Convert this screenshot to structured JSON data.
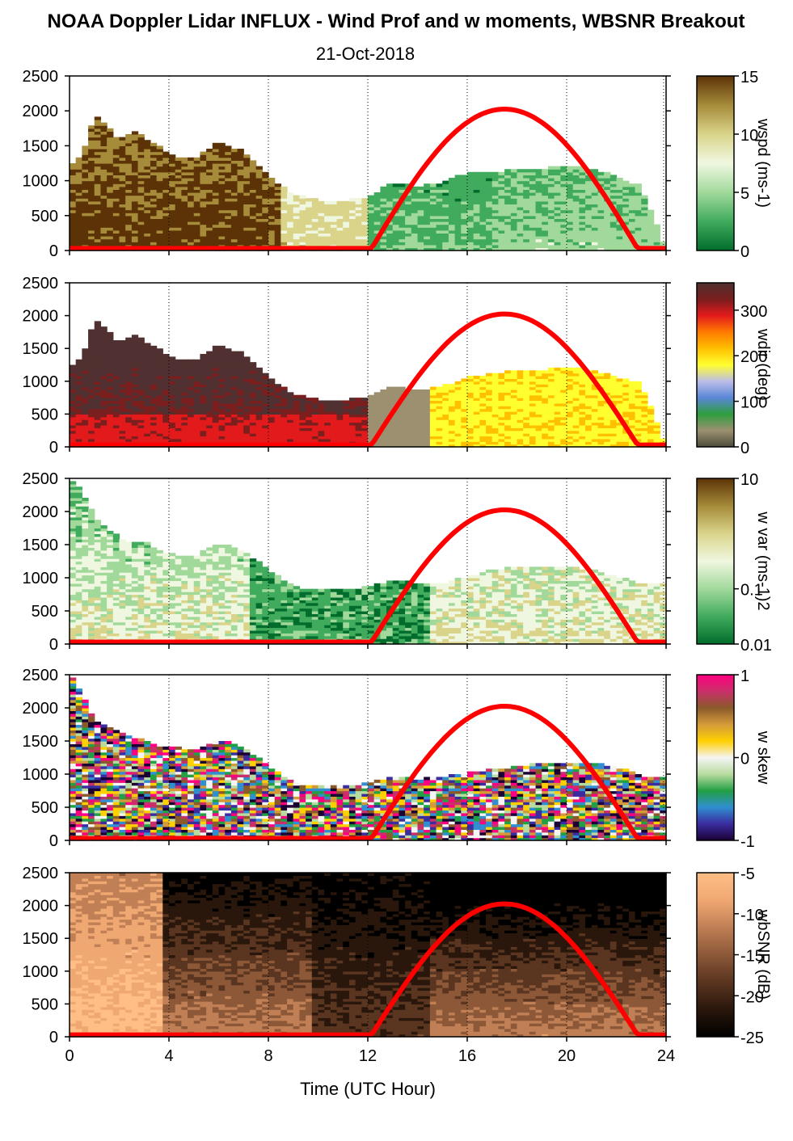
{
  "chart_data": {
    "type": "heatmap",
    "title": "NOAA Doppler Lidar INFLUX - Wind Prof and w moments, WBSNR Breakout",
    "subtitle": "21-Oct-2018",
    "xlabel": "Time (UTC Hour)",
    "xlim": [
      0,
      24
    ],
    "x_ticks": [
      "0",
      "4",
      "8",
      "12",
      "16",
      "20",
      "24"
    ],
    "ylim": [
      0,
      2500
    ],
    "y_ticks": [
      "0",
      "500",
      "1000",
      "1500",
      "2000",
      "2500"
    ],
    "grid": "vertical dotted lines every 4 hours",
    "overlay": {
      "name": "solar elevation curve",
      "color": "#ff0000",
      "x": [
        0,
        12.1,
        13,
        14,
        15,
        16,
        17,
        17.5,
        18,
        19,
        20,
        21,
        22,
        22.9,
        24
      ],
      "y": [
        30,
        30,
        740,
        1310,
        1710,
        1940,
        2020,
        2025,
        2010,
        1860,
        1560,
        1110,
        520,
        30,
        30
      ]
    },
    "panels": [
      {
        "id": "wspd",
        "colorbar_label": "wspd (ms-1)",
        "colorbar_ticks": [
          "0",
          "5",
          "10",
          "15"
        ],
        "colorbar_range": [
          0,
          15
        ],
        "colors": [
          "#006d2c",
          "#41ab5d",
          "#a1d99b",
          "#f0f7e0",
          "#d9d48a",
          "#a68b3a",
          "#5c3306"
        ],
        "echo_top": {
          "x": [
            0,
            0.5,
            1,
            1.5,
            2,
            2.5,
            3,
            3.5,
            4,
            5,
            6,
            7,
            8,
            9,
            10,
            11,
            12,
            13,
            14,
            15,
            16,
            17,
            18,
            19,
            20,
            21,
            22,
            23,
            24
          ],
          "y": [
            1200,
            1350,
            1900,
            1800,
            1550,
            1700,
            1600,
            1500,
            1350,
            1300,
            1550,
            1400,
            1050,
            800,
            700,
            700,
            750,
            950,
            900,
            950,
            1100,
            1100,
            1150,
            1150,
            1200,
            1150,
            1050,
            900,
            0
          ]
        }
      },
      {
        "id": "wdir",
        "colorbar_label": "wdir (deg)",
        "colorbar_ticks": [
          "0",
          "100",
          "200",
          "300"
        ],
        "colorbar_range": [
          0,
          360
        ],
        "colors": [
          "#4b4b3a",
          "#9c9070",
          "#2e9e3e",
          "#5a86d8",
          "#bdbde8",
          "#ffff30",
          "#ffc000",
          "#ff7a00",
          "#e31a1c",
          "#7a1e1e",
          "#503030"
        ],
        "echo_top": {
          "x": [
            0,
            0.5,
            1,
            1.5,
            2,
            2.5,
            3,
            3.5,
            4,
            5,
            6,
            7,
            8,
            9,
            10,
            11,
            12,
            13,
            14,
            15,
            16,
            17,
            18,
            19,
            20,
            21,
            22,
            23,
            24
          ],
          "y": [
            1200,
            1350,
            1900,
            1800,
            1550,
            1700,
            1600,
            1500,
            1350,
            1300,
            1550,
            1400,
            1050,
            800,
            700,
            700,
            750,
            900,
            850,
            900,
            1050,
            1100,
            1150,
            1150,
            1200,
            1150,
            1050,
            950,
            0
          ]
        }
      },
      {
        "id": "wvar",
        "colorbar_label": "w var (ms-1)2",
        "colorbar_ticks": [
          "0.01",
          "0.1",
          "10"
        ],
        "colorbar_range": [
          0.01,
          10
        ],
        "colors": [
          "#006d2c",
          "#41ab5d",
          "#a1d99b",
          "#f0f7e0",
          "#d9d48a",
          "#a68b3a",
          "#5c3306"
        ],
        "echo_top": {
          "x": [
            0,
            0.5,
            1,
            1.5,
            2,
            2.5,
            3,
            3.5,
            4,
            5,
            6,
            7,
            8,
            9,
            10,
            11,
            12,
            13,
            14,
            15,
            16,
            17,
            18,
            19,
            20,
            21,
            22,
            23,
            24
          ],
          "y": [
            2500,
            2300,
            1900,
            1700,
            1600,
            1500,
            1550,
            1400,
            1350,
            1300,
            1500,
            1400,
            1100,
            850,
            800,
            800,
            850,
            950,
            900,
            900,
            1000,
            1100,
            1150,
            1150,
            1150,
            1100,
            1000,
            900,
            900
          ]
        }
      },
      {
        "id": "wskew",
        "colorbar_label": "w skew",
        "colorbar_ticks": [
          "-1",
          "0",
          "1"
        ],
        "colorbar_range": [
          -1,
          1
        ],
        "colors": [
          "#1a0033",
          "#3b2ca0",
          "#2f8fd0",
          "#22a045",
          "#b8dba0",
          "#f5f5f5",
          "#ffd000",
          "#d49a3a",
          "#8a5a2a",
          "#c9306a",
          "#ff0080"
        ],
        "echo_top": {
          "x": [
            0,
            0.5,
            1,
            1.5,
            2,
            2.5,
            3,
            3.5,
            4,
            5,
            6,
            7,
            8,
            9,
            10,
            11,
            12,
            13,
            14,
            15,
            16,
            17,
            18,
            19,
            20,
            21,
            22,
            23,
            24
          ],
          "y": [
            2500,
            2200,
            1800,
            1700,
            1600,
            1550,
            1500,
            1400,
            1400,
            1350,
            1500,
            1400,
            1100,
            850,
            800,
            800,
            850,
            950,
            900,
            950,
            1000,
            1050,
            1100,
            1150,
            1150,
            1150,
            1100,
            950,
            950
          ]
        }
      },
      {
        "id": "wbsnr",
        "colorbar_label": "wbSNR (dB)",
        "colorbar_ticks": [
          "-25",
          "-20",
          "-15",
          "-10",
          "-5"
        ],
        "colorbar_range": [
          -25,
          -5
        ],
        "colors": [
          "#000000",
          "#2a170c",
          "#5a3520",
          "#8c5838",
          "#c07f55",
          "#f0a873",
          "#ffbe85"
        ],
        "echo_top": {
          "x": [
            0,
            0.5,
            1,
            1.5,
            2,
            2.5,
            3,
            3.5,
            4,
            5,
            6,
            7,
            8,
            9,
            10,
            11,
            12,
            13,
            14,
            15,
            16,
            17,
            18,
            19,
            20,
            21,
            22,
            23,
            24
          ],
          "y": [
            2500,
            2500,
            2500,
            2500,
            2500,
            2500,
            2500,
            2500,
            2500,
            2500,
            2500,
            2500,
            2500,
            2500,
            2500,
            2500,
            2500,
            2500,
            2500,
            2500,
            2500,
            2500,
            2500,
            2500,
            2500,
            2500,
            2500,
            2500,
            2500
          ]
        }
      }
    ]
  }
}
